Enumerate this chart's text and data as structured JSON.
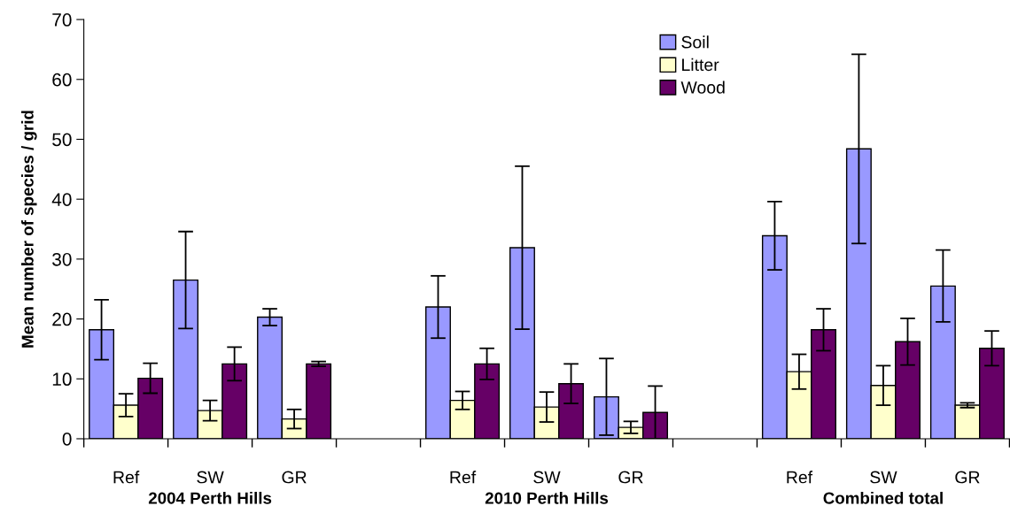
{
  "chart_data": {
    "type": "bar",
    "ylabel": "Mean number of species / grid",
    "categories": [
      "Ref",
      "SW",
      "GR",
      null,
      "Ref",
      "SW",
      "GR",
      null,
      "Ref",
      "SW",
      "GR"
    ],
    "series": [
      {
        "name": "Soil",
        "color": "#9999ff",
        "values": [
          18.2,
          26.5,
          20.3,
          null,
          22.0,
          31.9,
          7.0,
          null,
          33.9,
          48.4,
          25.5
        ],
        "errors": [
          5.0,
          8.1,
          1.4,
          null,
          5.2,
          13.6,
          6.4,
          null,
          5.7,
          15.8,
          6.0
        ]
      },
      {
        "name": "Litter",
        "color": "#ffffcc",
        "values": [
          5.6,
          4.7,
          3.3,
          null,
          6.4,
          5.3,
          1.9,
          null,
          11.2,
          8.9,
          5.6
        ],
        "errors": [
          1.9,
          1.7,
          1.6,
          null,
          1.5,
          2.5,
          1.0,
          null,
          2.9,
          3.3,
          0.4
        ]
      },
      {
        "name": "Wood",
        "color": "#660066",
        "values": [
          10.1,
          12.5,
          12.5,
          null,
          12.5,
          9.2,
          4.4,
          null,
          18.2,
          16.2,
          15.1
        ],
        "errors": [
          2.5,
          2.8,
          0.4,
          null,
          2.6,
          3.3,
          4.4,
          null,
          3.5,
          3.9,
          2.9
        ]
      }
    ],
    "ylim": [
      0,
      70
    ],
    "yticks": [
      0,
      10,
      20,
      30,
      40,
      50,
      60,
      70
    ],
    "legend": "top right",
    "annotations": [
      "2004 Perth Hills",
      "2010 Perth Hills",
      "Combined total"
    ]
  }
}
